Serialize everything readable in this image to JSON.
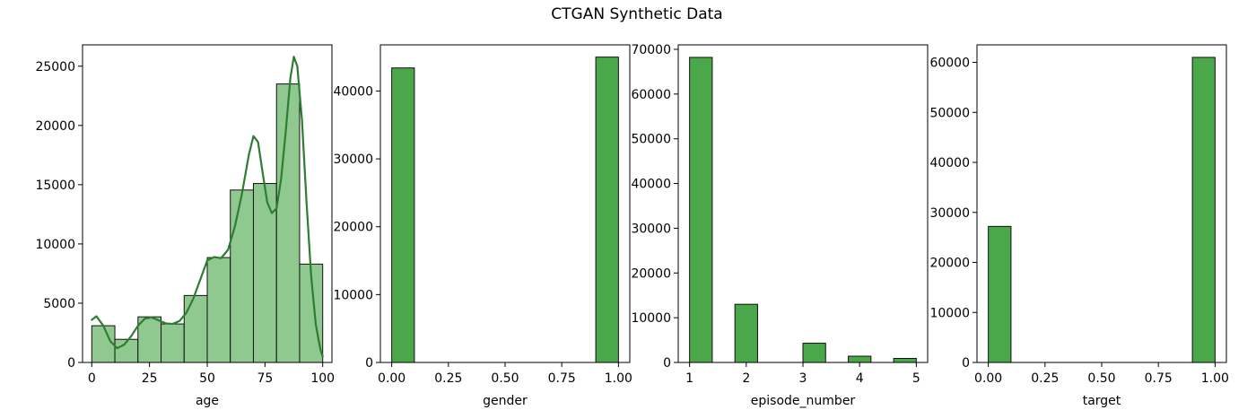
{
  "figure": {
    "title": "CTGAN Synthetic Data",
    "colors": {
      "bar_dark": "#4aa84a",
      "bar_light": "#8fc98f",
      "bar_edge": "#111111",
      "kde_line": "#2e7d32",
      "axes": "#000000"
    }
  },
  "chart_data": [
    {
      "type": "bar",
      "xlabel": "age",
      "ylabel": "",
      "xlim": [
        -4,
        104
      ],
      "ylim": [
        0,
        26800
      ],
      "xticks": [
        0,
        25,
        50,
        75,
        100
      ],
      "xtick_labels": [
        "0",
        "25",
        "50",
        "75",
        "100"
      ],
      "yticks": [
        0,
        5000,
        10000,
        15000,
        20000,
        25000
      ],
      "ytick_labels": [
        "0",
        "5000",
        "10000",
        "15000",
        "20000",
        "25000"
      ],
      "style": "light",
      "bins": [
        {
          "x0": 0,
          "x1": 10,
          "value": 3100
        },
        {
          "x0": 10,
          "x1": 20,
          "value": 1950
        },
        {
          "x0": 20,
          "x1": 30,
          "value": 3850
        },
        {
          "x0": 30,
          "x1": 40,
          "value": 3250
        },
        {
          "x0": 40,
          "x1": 50,
          "value": 5650
        },
        {
          "x0": 50,
          "x1": 60,
          "value": 8850
        },
        {
          "x0": 60,
          "x1": 70,
          "value": 14550
        },
        {
          "x0": 70,
          "x1": 80,
          "value": 15100
        },
        {
          "x0": 80,
          "x1": 90,
          "value": 23500
        },
        {
          "x0": 90,
          "x1": 100,
          "value": 8300
        }
      ],
      "kde": {
        "x": [
          0,
          2,
          5,
          8,
          11,
          14,
          17,
          20,
          23,
          26,
          29,
          32,
          35,
          38,
          41,
          44,
          47,
          50,
          53,
          56,
          59,
          62,
          65,
          68,
          70,
          72,
          74,
          76,
          78,
          80,
          82,
          84,
          86,
          87.5,
          89,
          91,
          93,
          95,
          97,
          99,
          100
        ],
        "y": [
          3600,
          3900,
          3100,
          1800,
          1200,
          1500,
          2200,
          3100,
          3700,
          3800,
          3550,
          3300,
          3250,
          3500,
          4200,
          5400,
          7000,
          8600,
          8900,
          8800,
          9500,
          11500,
          14200,
          17500,
          19100,
          18600,
          16000,
          13500,
          12600,
          13000,
          15500,
          19500,
          24000,
          25800,
          25000,
          20500,
          13500,
          7300,
          3200,
          1100,
          500
        ]
      }
    },
    {
      "type": "bar",
      "xlabel": "gender",
      "ylabel": "",
      "xlim": [
        -0.05,
        1.05
      ],
      "ylim": [
        0,
        46800
      ],
      "xticks": [
        0,
        0.25,
        0.5,
        0.75,
        1.0
      ],
      "xtick_labels": [
        "0.00",
        "0.25",
        "0.50",
        "0.75",
        "1.00"
      ],
      "yticks": [
        0,
        10000,
        20000,
        30000,
        40000
      ],
      "ytick_labels": [
        "0",
        "10000",
        "20000",
        "30000",
        "40000"
      ],
      "style": "dark",
      "bins": [
        {
          "x0": 0.0,
          "x1": 0.1,
          "value": 43400
        },
        {
          "x0": 0.9,
          "x1": 1.0,
          "value": 45000
        }
      ]
    },
    {
      "type": "bar",
      "xlabel": "episode_number",
      "ylabel": "",
      "xlim": [
        0.8,
        5.2
      ],
      "ylim": [
        0,
        71000
      ],
      "xticks": [
        1,
        2,
        3,
        4,
        5
      ],
      "xtick_labels": [
        "1",
        "2",
        "3",
        "4",
        "5"
      ],
      "yticks": [
        0,
        10000,
        20000,
        30000,
        40000,
        50000,
        60000,
        70000
      ],
      "ytick_labels": [
        "0",
        "10000",
        "20000",
        "30000",
        "40000",
        "50000",
        "60000",
        "70000"
      ],
      "style": "dark",
      "bins": [
        {
          "x0": 1.0,
          "x1": 1.4,
          "value": 68200
        },
        {
          "x0": 1.8,
          "x1": 2.2,
          "value": 13000
        },
        {
          "x0": 2.6,
          "x1": 3.0,
          "value": 0
        },
        {
          "x0": 3.0,
          "x1": 3.4,
          "value": 4300
        },
        {
          "x0": 3.8,
          "x1": 4.2,
          "value": 1400
        },
        {
          "x0": 4.6,
          "x1": 5.0,
          "value": 900
        }
      ]
    },
    {
      "type": "bar",
      "xlabel": "target",
      "ylabel": "",
      "xlim": [
        -0.05,
        1.05
      ],
      "ylim": [
        0,
        63500
      ],
      "xticks": [
        0,
        0.25,
        0.5,
        0.75,
        1.0
      ],
      "xtick_labels": [
        "0.00",
        "0.25",
        "0.50",
        "0.75",
        "1.00"
      ],
      "yticks": [
        0,
        10000,
        20000,
        30000,
        40000,
        50000,
        60000
      ],
      "ytick_labels": [
        "0",
        "10000",
        "20000",
        "30000",
        "40000",
        "50000",
        "60000"
      ],
      "style": "dark",
      "bins": [
        {
          "x0": 0.0,
          "x1": 0.1,
          "value": 27200
        },
        {
          "x0": 0.9,
          "x1": 1.0,
          "value": 61000
        }
      ]
    }
  ]
}
